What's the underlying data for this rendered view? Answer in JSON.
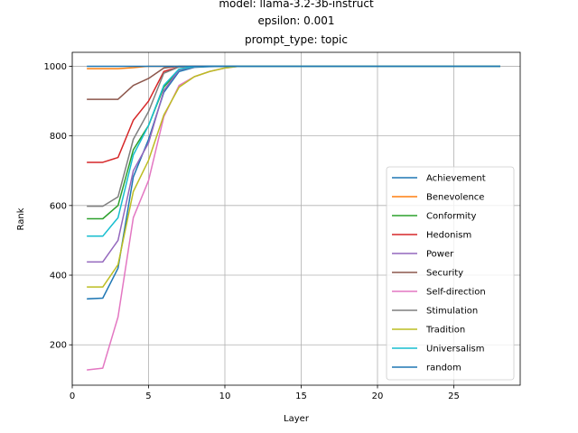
{
  "chart_data": {
    "type": "line",
    "title_lines": [
      "model: llama-3.2-3b-instruct",
      "epsilon: 0.001",
      "prompt_type: topic"
    ],
    "xlabel": "Layer",
    "ylabel": "Rank",
    "xlim": [
      0,
      29.35
    ],
    "ylim": [
      84,
      1040
    ],
    "xticks": [
      0,
      5,
      10,
      15,
      20,
      25
    ],
    "yticks": [
      200,
      400,
      600,
      800,
      1000
    ],
    "grid": true,
    "legend_position": "lower right",
    "x": [
      1,
      2,
      3,
      4,
      5,
      6,
      7,
      8,
      9,
      10,
      11,
      12,
      13,
      14,
      15,
      16,
      17,
      18,
      19,
      20,
      21,
      22,
      23,
      24,
      25,
      26,
      27,
      28
    ],
    "series": [
      {
        "name": "Achievement",
        "color": "#1f77b4",
        "values": [
          332,
          334,
          420,
          682,
          790,
          925,
          985,
          997,
          999,
          1000,
          1000,
          1000,
          1000,
          1000,
          1000,
          1000,
          1000,
          1000,
          1000,
          1000,
          1000,
          1000,
          1000,
          1000,
          1000,
          1000,
          1000,
          1000
        ]
      },
      {
        "name": "Benevolence",
        "color": "#ff7f0e",
        "values": [
          993,
          993,
          993,
          996,
          1000,
          1000,
          1000,
          1000,
          1000,
          1000,
          1000,
          1000,
          1000,
          1000,
          1000,
          1000,
          1000,
          1000,
          1000,
          1000,
          1000,
          1000,
          1000,
          1000,
          1000,
          1000,
          1000,
          1000
        ]
      },
      {
        "name": "Conformity",
        "color": "#2ca02c",
        "values": [
          562,
          562,
          600,
          760,
          830,
          940,
          990,
          998,
          1000,
          1000,
          1000,
          1000,
          1000,
          1000,
          1000,
          1000,
          1000,
          1000,
          1000,
          1000,
          1000,
          1000,
          1000,
          1000,
          1000,
          1000,
          1000,
          1000
        ]
      },
      {
        "name": "Hedonism",
        "color": "#d62728",
        "values": [
          724,
          724,
          738,
          845,
          900,
          985,
          998,
          1000,
          1000,
          1000,
          1000,
          1000,
          1000,
          1000,
          1000,
          1000,
          1000,
          1000,
          1000,
          1000,
          1000,
          1000,
          1000,
          1000,
          1000,
          1000,
          1000,
          1000
        ]
      },
      {
        "name": "Power",
        "color": "#9467bd",
        "values": [
          438,
          438,
          500,
          700,
          780,
          930,
          990,
          998,
          1000,
          1000,
          1000,
          1000,
          1000,
          1000,
          1000,
          1000,
          1000,
          1000,
          1000,
          1000,
          1000,
          1000,
          1000,
          1000,
          1000,
          1000,
          1000,
          1000
        ]
      },
      {
        "name": "Security",
        "color": "#8c564b",
        "values": [
          905,
          905,
          905,
          945,
          965,
          995,
          1000,
          1000,
          1000,
          1000,
          1000,
          1000,
          1000,
          1000,
          1000,
          1000,
          1000,
          1000,
          1000,
          1000,
          1000,
          1000,
          1000,
          1000,
          1000,
          1000,
          1000,
          1000
        ]
      },
      {
        "name": "Self-direction",
        "color": "#e377c2",
        "values": [
          128,
          133,
          280,
          565,
          672,
          855,
          945,
          970,
          985,
          995,
          1000,
          1000,
          1000,
          1000,
          1000,
          1000,
          1000,
          1000,
          1000,
          1000,
          1000,
          1000,
          1000,
          1000,
          1000,
          1000,
          1000,
          1000
        ]
      },
      {
        "name": "Stimulation",
        "color": "#7f7f7f",
        "values": [
          598,
          598,
          625,
          790,
          870,
          980,
          998,
          1000,
          1000,
          1000,
          1000,
          1000,
          1000,
          1000,
          1000,
          1000,
          1000,
          1000,
          1000,
          1000,
          1000,
          1000,
          1000,
          1000,
          1000,
          1000,
          1000,
          1000
        ]
      },
      {
        "name": "Tradition",
        "color": "#bcbd22",
        "values": [
          366,
          366,
          430,
          640,
          730,
          860,
          940,
          970,
          985,
          995,
          1000,
          1000,
          1000,
          1000,
          1000,
          1000,
          1000,
          1000,
          1000,
          1000,
          1000,
          1000,
          1000,
          1000,
          1000,
          1000,
          1000,
          1000
        ]
      },
      {
        "name": "Universalism",
        "color": "#17becf",
        "values": [
          512,
          512,
          565,
          745,
          830,
          945,
          992,
          999,
          1000,
          1000,
          1000,
          1000,
          1000,
          1000,
          1000,
          1000,
          1000,
          1000,
          1000,
          1000,
          1000,
          1000,
          1000,
          1000,
          1000,
          1000,
          1000,
          1000
        ]
      },
      {
        "name": "random",
        "color": "#1f77b4",
        "values": [
          1000,
          1000,
          1000,
          1000,
          1000,
          1000,
          1000,
          1000,
          1000,
          1000,
          1000,
          1000,
          1000,
          1000,
          1000,
          1000,
          1000,
          1000,
          1000,
          1000,
          1000,
          1000,
          1000,
          1000,
          1000,
          1000,
          1000,
          1000
        ]
      }
    ]
  }
}
